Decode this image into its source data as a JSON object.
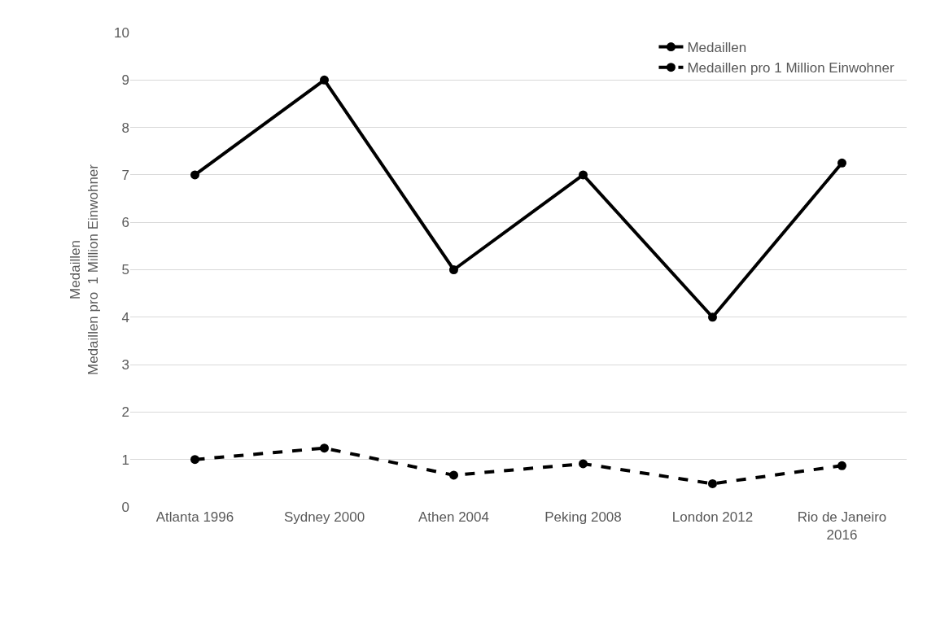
{
  "chart_data": {
    "type": "line",
    "ylabel": "Medaillen\nMedaillen pro  1 Million Einwohner",
    "categories": [
      "Atlanta 1996",
      "Sydney 2000",
      "Athen 2004",
      "Peking 2008",
      "London 2012",
      "Rio de Janeiro\n2016"
    ],
    "series": [
      {
        "name": "Medaillen",
        "color": "#000000",
        "line_style": "solid",
        "values": [
          7,
          9,
          5,
          7,
          4,
          7.25
        ]
      },
      {
        "name": "Medaillen pro 1 Million Einwohner",
        "color": "#000000",
        "line_style": "dashed",
        "values": [
          1,
          1.24,
          0.67,
          0.91,
          0.49,
          0.87
        ]
      }
    ],
    "ylim": [
      0,
      10
    ],
    "yticks": [
      0,
      1,
      2,
      3,
      4,
      5,
      6,
      7,
      8,
      9,
      10
    ],
    "grid": "y",
    "legend": "top right",
    "marker": "circle"
  }
}
